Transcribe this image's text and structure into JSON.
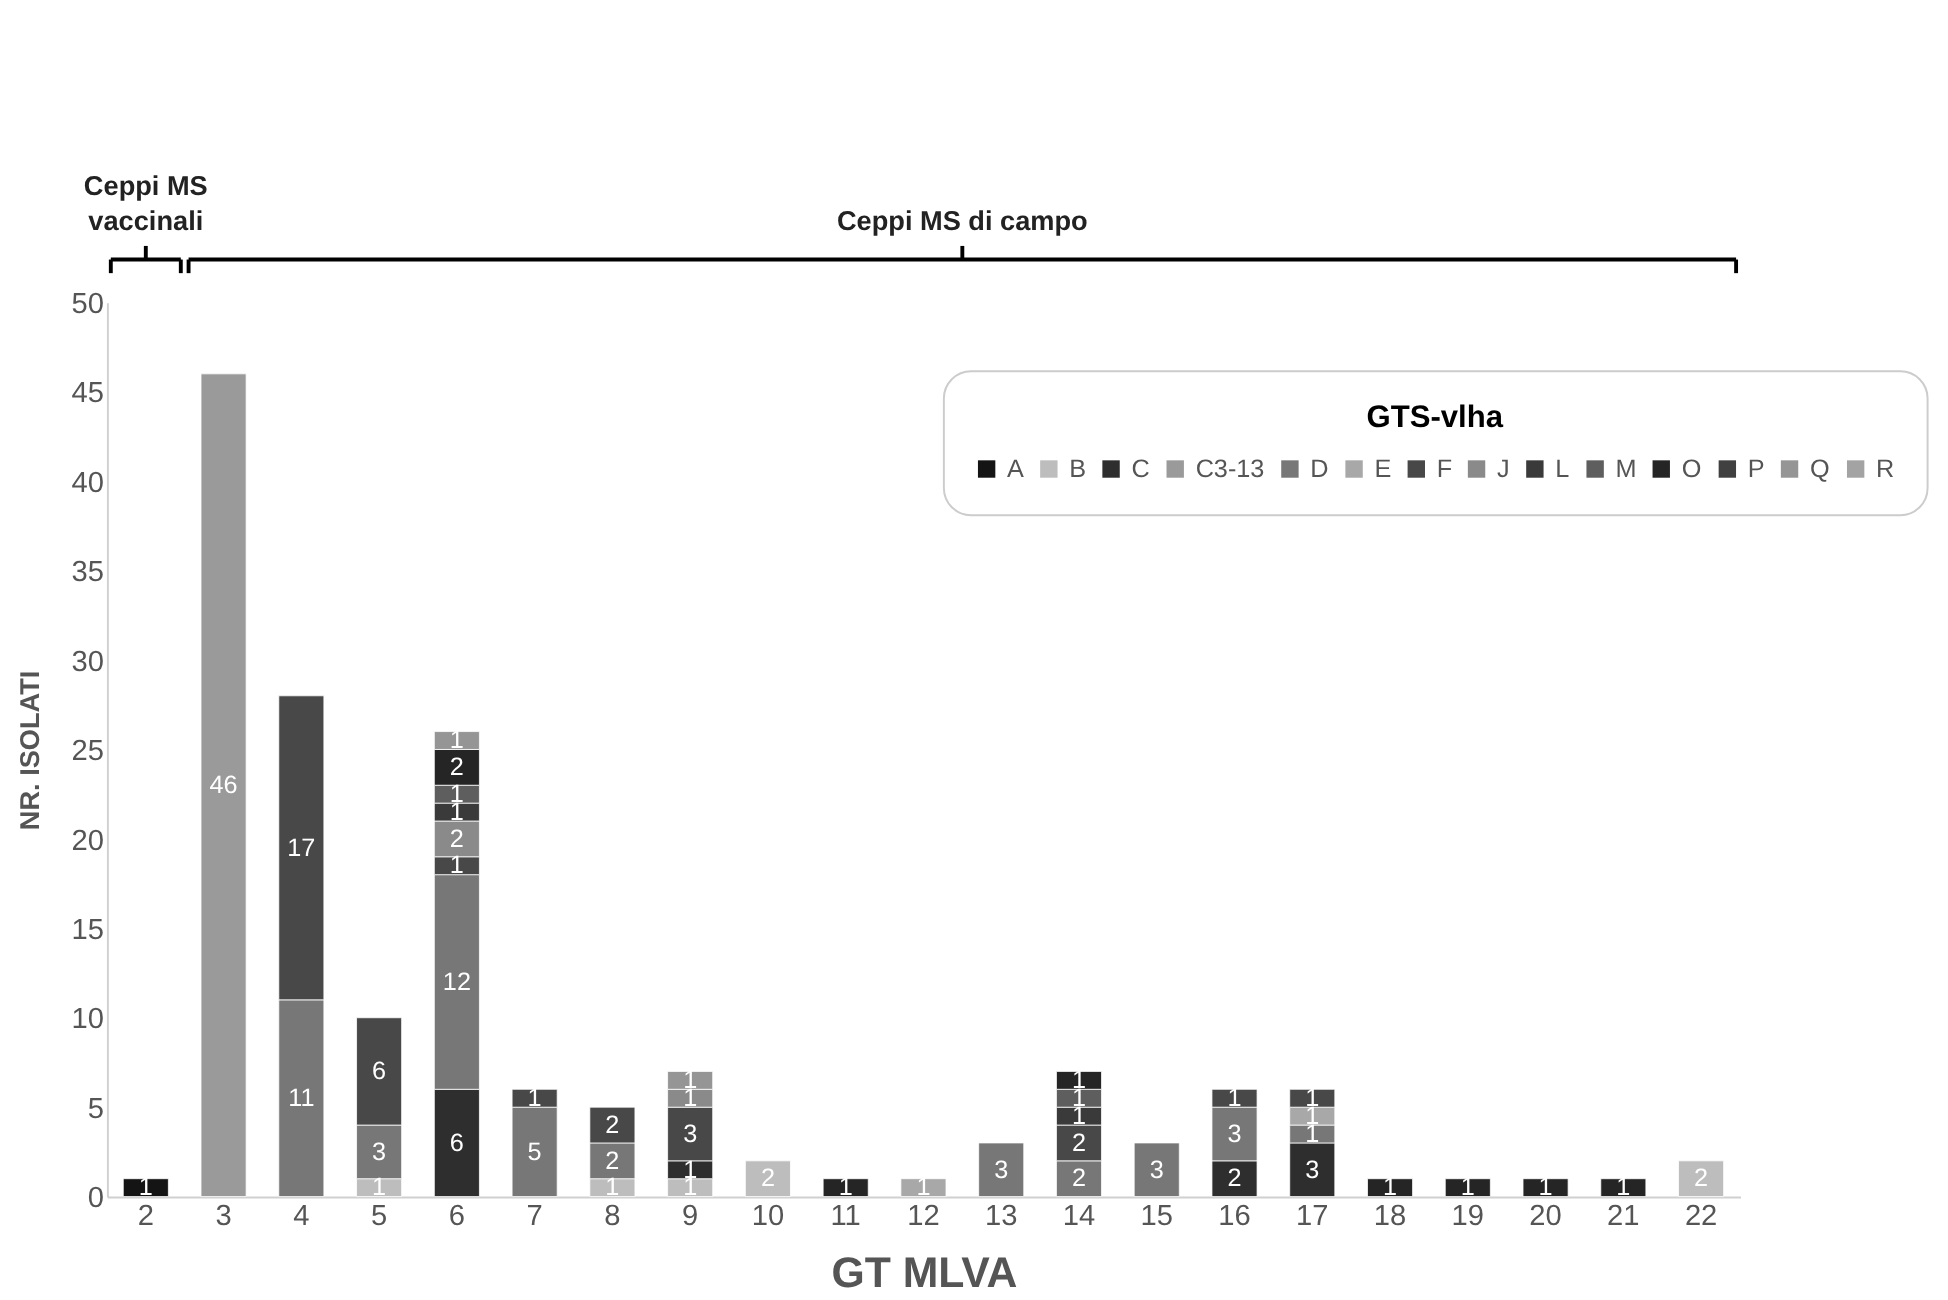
{
  "chart_data": {
    "type": "bar",
    "stacked": true,
    "xlabel": "GT MLVA",
    "ylabel": "NR. ISOLATI",
    "legend_title": "GTS-vlha",
    "legend": "top right",
    "grid": false,
    "data_labels": true,
    "categories": [
      "2",
      "3",
      "4",
      "5",
      "6",
      "7",
      "8",
      "9",
      "10",
      "11",
      "12",
      "13",
      "14",
      "15",
      "16",
      "17",
      "18",
      "19",
      "20",
      "21",
      "22"
    ],
    "ylim": [
      0,
      50
    ],
    "yticks": [
      0,
      5,
      10,
      15,
      20,
      25,
      30,
      35,
      40,
      45,
      50
    ],
    "annotations": [
      "Ceppi MS vaccinali",
      "Ceppi MS di campo"
    ],
    "series": [
      {
        "name": "A",
        "color": "#141414",
        "values": [
          1,
          null,
          null,
          null,
          null,
          null,
          null,
          null,
          null,
          null,
          null,
          null,
          null,
          null,
          null,
          null,
          null,
          null,
          null,
          null,
          null
        ]
      },
      {
        "name": "B",
        "color": "#bdbdbd",
        "values": [
          null,
          null,
          null,
          1,
          null,
          null,
          1,
          1,
          2,
          null,
          null,
          null,
          null,
          null,
          null,
          null,
          null,
          null,
          null,
          null,
          2
        ]
      },
      {
        "name": "C",
        "color": "#2e2e2e",
        "values": [
          null,
          null,
          null,
          null,
          6,
          null,
          null,
          1,
          null,
          null,
          null,
          null,
          null,
          null,
          2,
          3,
          null,
          null,
          null,
          null,
          null
        ]
      },
      {
        "name": "C3-13",
        "color": "#9a9a9a",
        "values": [
          null,
          46,
          null,
          null,
          null,
          null,
          null,
          null,
          null,
          null,
          null,
          null,
          null,
          null,
          null,
          null,
          null,
          null,
          null,
          null,
          null
        ]
      },
      {
        "name": "D",
        "color": "#777777",
        "values": [
          null,
          null,
          11,
          3,
          12,
          5,
          2,
          null,
          null,
          null,
          null,
          3,
          2,
          3,
          3,
          1,
          null,
          null,
          null,
          null,
          null
        ]
      },
      {
        "name": "E",
        "color": "#a8a8a8",
        "values": [
          null,
          null,
          null,
          null,
          null,
          null,
          null,
          null,
          null,
          null,
          1,
          null,
          null,
          null,
          null,
          1,
          null,
          null,
          null,
          null,
          null
        ]
      },
      {
        "name": "F",
        "color": "#484848",
        "values": [
          null,
          null,
          17,
          6,
          1,
          1,
          2,
          3,
          null,
          null,
          null,
          null,
          2,
          null,
          1,
          1,
          null,
          null,
          null,
          null,
          null
        ]
      },
      {
        "name": "J",
        "color": "#8a8a8a",
        "values": [
          null,
          null,
          null,
          null,
          2,
          null,
          null,
          1,
          null,
          null,
          null,
          null,
          null,
          null,
          null,
          null,
          null,
          null,
          null,
          null,
          null
        ]
      },
      {
        "name": "L",
        "color": "#3a3a3a",
        "values": [
          null,
          null,
          null,
          null,
          1,
          null,
          null,
          null,
          null,
          null,
          null,
          null,
          1,
          null,
          null,
          null,
          null,
          null,
          null,
          null,
          null
        ]
      },
      {
        "name": "M",
        "color": "#5e5e5e",
        "values": [
          null,
          null,
          null,
          null,
          1,
          null,
          null,
          null,
          null,
          null,
          null,
          null,
          1,
          null,
          null,
          null,
          null,
          null,
          null,
          null,
          null
        ]
      },
      {
        "name": "O",
        "color": "#252525",
        "values": [
          null,
          null,
          null,
          null,
          2,
          null,
          null,
          null,
          null,
          1,
          null,
          null,
          1,
          null,
          null,
          null,
          1,
          1,
          1,
          1,
          null
        ]
      },
      {
        "name": "P",
        "color": "#404040",
        "values": [
          null,
          null,
          null,
          null,
          null,
          null,
          null,
          null,
          null,
          null,
          null,
          null,
          null,
          null,
          null,
          null,
          null,
          null,
          null,
          null,
          null
        ]
      },
      {
        "name": "Q",
        "color": "#959595",
        "values": [
          null,
          null,
          null,
          null,
          1,
          null,
          null,
          1,
          null,
          null,
          null,
          null,
          null,
          null,
          null,
          null,
          null,
          null,
          null,
          null,
          null
        ]
      },
      {
        "name": "R",
        "color": "#a3a3a3",
        "values": [
          null,
          null,
          null,
          null,
          null,
          null,
          null,
          null,
          null,
          null,
          null,
          null,
          null,
          null,
          null,
          null,
          null,
          null,
          null,
          null,
          null
        ]
      }
    ]
  }
}
